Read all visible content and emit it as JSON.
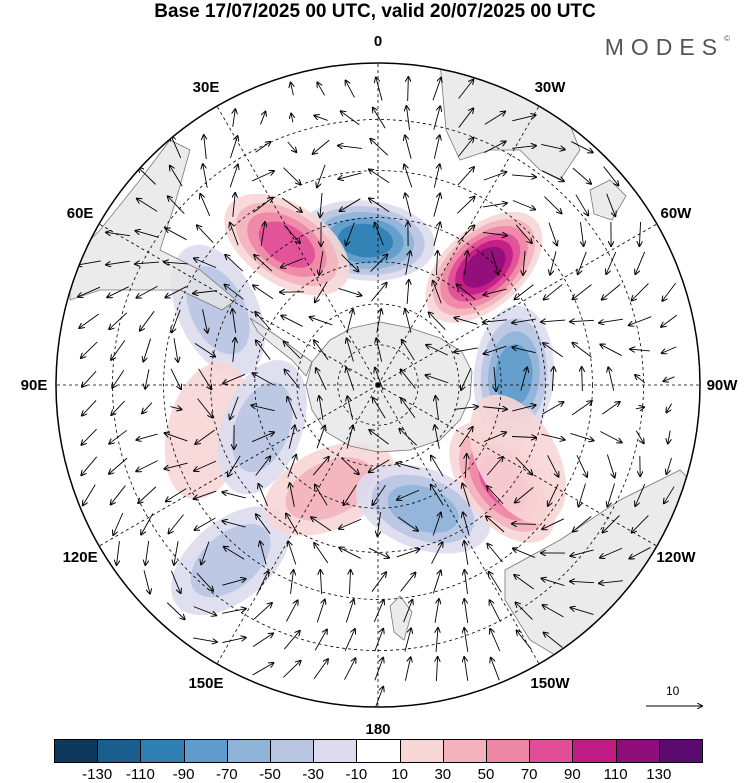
{
  "header": {
    "title": "Base 17/07/2025 00 UTC, valid 20/07/2025 00 UTC",
    "logo": "MODES",
    "logo_mark": "©"
  },
  "map": {
    "projection": "south-polar-stereographic",
    "longitude_labels": [
      {
        "text": "0",
        "lon": 0
      },
      {
        "text": "30E",
        "lon": 30
      },
      {
        "text": "60E",
        "lon": 60
      },
      {
        "text": "90E",
        "lon": 90
      },
      {
        "text": "120E",
        "lon": 120
      },
      {
        "text": "150E",
        "lon": 150
      },
      {
        "text": "180",
        "lon": 180
      },
      {
        "text": "150W",
        "lon": -150
      },
      {
        "text": "120W",
        "lon": -120
      },
      {
        "text": "90W",
        "lon": -90
      },
      {
        "text": "60W",
        "lon": -60
      },
      {
        "text": "30W",
        "lon": -30
      }
    ],
    "anomalies": [
      {
        "lat": -55,
        "lon": 5,
        "value": -100
      },
      {
        "lat": -50,
        "lon": 33,
        "value": 80
      },
      {
        "lat": -48,
        "lon": 65,
        "value": -40
      },
      {
        "lat": -48,
        "lon": 105,
        "value": 20
      },
      {
        "lat": -60,
        "lon": 110,
        "value": -40
      },
      {
        "lat": -37,
        "lon": 140,
        "value": -50
      },
      {
        "lat": -62,
        "lon": 155,
        "value": 40
      },
      {
        "lat": -58,
        "lon": -160,
        "value": -70
      },
      {
        "lat": -52,
        "lon": -128,
        "value": 80
      },
      {
        "lat": -57,
        "lon": -86,
        "value": -80
      },
      {
        "lat": -52,
        "lon": -42,
        "value": 120
      },
      {
        "lat": -52,
        "lon": -118,
        "value": 20
      }
    ],
    "wind_scale_label": "10"
  },
  "colorbar": {
    "labels": [
      "-130",
      "-110",
      "-90",
      "-70",
      "-50",
      "-30",
      "-10",
      "10",
      "30",
      "50",
      "70",
      "90",
      "110",
      "130"
    ],
    "colors": [
      "#0d3a5c",
      "#1a5e8e",
      "#2f7fb5",
      "#5e9ccb",
      "#8fb4d8",
      "#b9c6e2",
      "#dcdcee",
      "#ffffff",
      "#f7d6d6",
      "#f3b2bc",
      "#ee86a6",
      "#e14d97",
      "#c01b85",
      "#8e0d7a",
      "#5b0a70"
    ]
  }
}
